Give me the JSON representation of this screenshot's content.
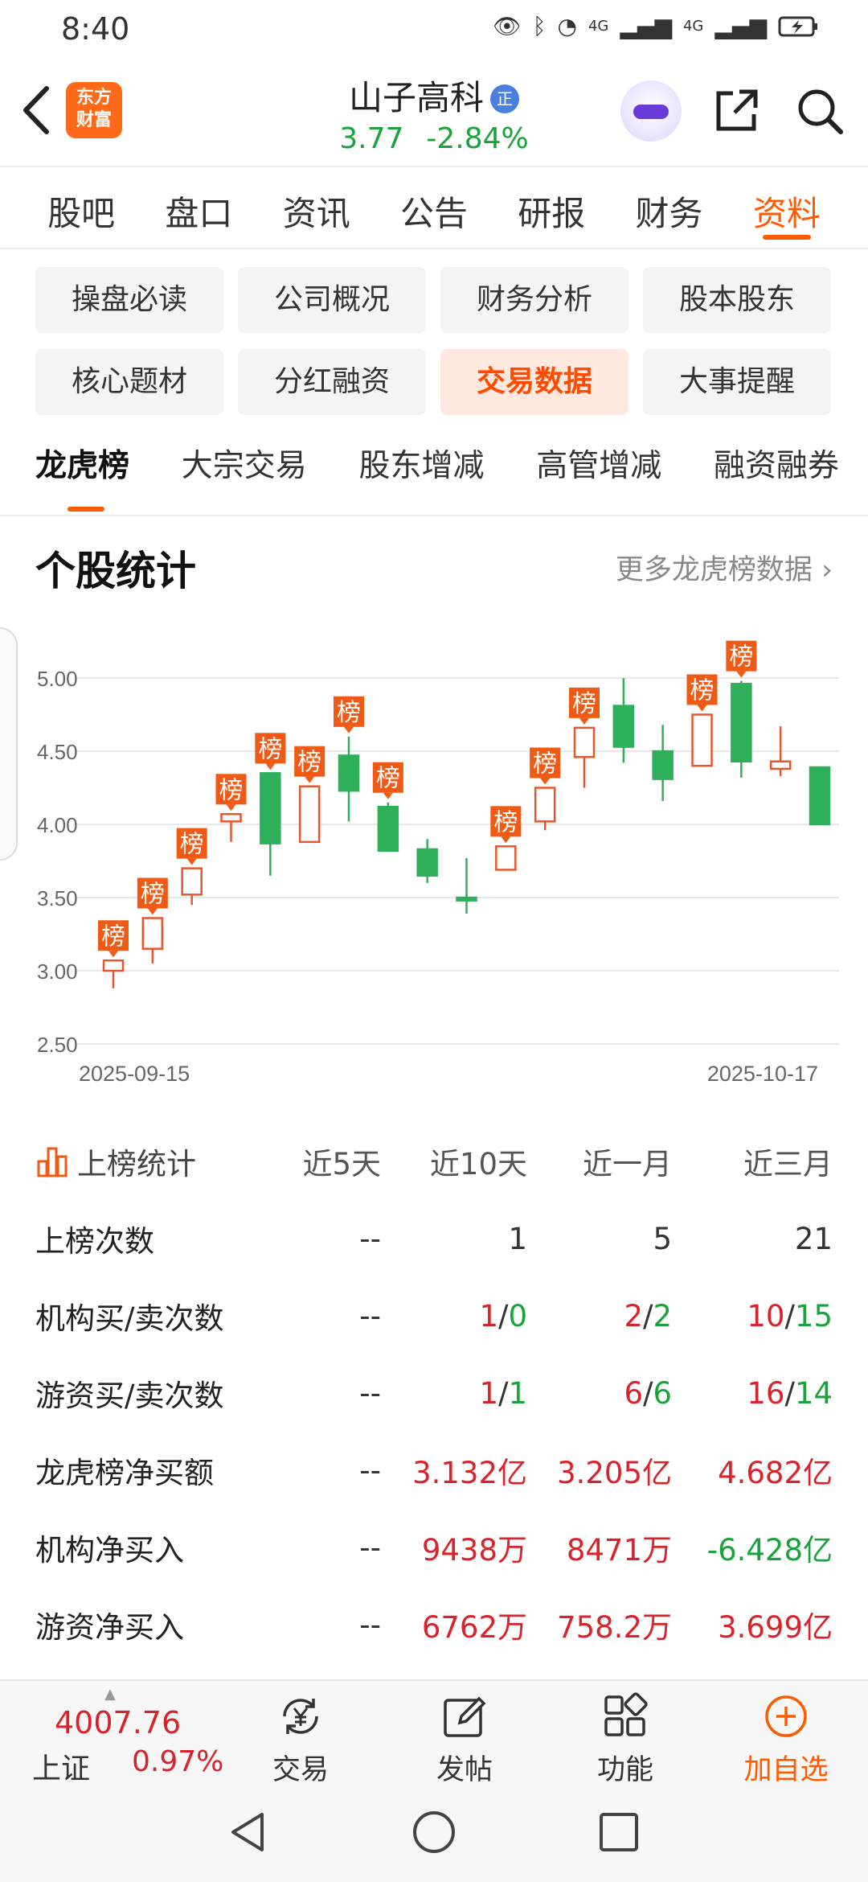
{
  "status_bar": {
    "time": "8:40",
    "signal1": "4G",
    "signal2": "4G"
  },
  "header": {
    "logo_line1": "东方",
    "logo_line2": "财富",
    "stock_name": "山子高科",
    "badge": "正",
    "price": "3.77",
    "change_pct": "-2.84%"
  },
  "main_tabs": [
    "股吧",
    "盘口",
    "资讯",
    "公告",
    "研报",
    "财务",
    "资料"
  ],
  "grid_buttons": [
    "操盘必读",
    "公司概况",
    "财务分析",
    "股本股东",
    "核心题材",
    "分红融资",
    "交易数据",
    "大事提醒"
  ],
  "sub_tabs": [
    "龙虎榜",
    "大宗交易",
    "股东增减",
    "高管增减",
    "融资融券"
  ],
  "section": {
    "title": "个股统计",
    "more": "更多龙虎榜数据 ›"
  },
  "chart_data": {
    "type": "candlestick",
    "ylim": [
      2.5,
      5.25
    ],
    "yticks": [
      "5.00",
      "4.50",
      "4.00",
      "3.50",
      "3.00",
      "2.50"
    ],
    "x_start_label": "2025-09-15",
    "x_end_label": "2025-10-17",
    "marker_label": "榜",
    "candles": [
      {
        "o": 3.0,
        "c": 3.07,
        "h": 3.07,
        "l": 2.88,
        "list": true
      },
      {
        "o": 3.15,
        "c": 3.36,
        "h": 3.36,
        "l": 3.05,
        "list": true
      },
      {
        "o": 3.52,
        "c": 3.7,
        "h": 3.7,
        "l": 3.45,
        "list": true
      },
      {
        "o": 4.02,
        "c": 4.07,
        "h": 4.07,
        "l": 3.88,
        "list": true
      },
      {
        "o": 4.35,
        "c": 3.87,
        "h": 4.35,
        "l": 3.65,
        "list": true
      },
      {
        "o": 3.88,
        "c": 4.26,
        "h": 4.26,
        "l": 3.88,
        "list": true
      },
      {
        "o": 4.47,
        "c": 4.23,
        "h": 4.6,
        "l": 4.02,
        "list": true
      },
      {
        "o": 4.12,
        "c": 3.82,
        "h": 4.15,
        "l": 3.82,
        "list": true
      },
      {
        "o": 3.83,
        "c": 3.65,
        "h": 3.9,
        "l": 3.6,
        "list": false
      },
      {
        "o": 3.5,
        "c": 3.48,
        "h": 3.77,
        "l": 3.39,
        "list": false
      },
      {
        "o": 3.69,
        "c": 3.85,
        "h": 3.85,
        "l": 3.69,
        "list": true
      },
      {
        "o": 4.02,
        "c": 4.25,
        "h": 4.25,
        "l": 3.96,
        "list": true
      },
      {
        "o": 4.46,
        "c": 4.66,
        "h": 4.66,
        "l": 4.25,
        "list": true
      },
      {
        "o": 4.81,
        "c": 4.53,
        "h": 5.0,
        "l": 4.42,
        "list": false
      },
      {
        "o": 4.5,
        "c": 4.31,
        "h": 4.68,
        "l": 4.16,
        "list": false
      },
      {
        "o": 4.4,
        "c": 4.75,
        "h": 4.75,
        "l": 4.4,
        "list": true
      },
      {
        "o": 4.96,
        "c": 4.43,
        "h": 4.98,
        "l": 4.32,
        "list": true
      },
      {
        "o": 4.38,
        "c": 4.43,
        "h": 4.67,
        "l": 4.33,
        "list": false
      },
      {
        "o": 4.39,
        "c": 4.0,
        "h": 4.39,
        "l": 4.0,
        "list": false
      }
    ],
    "colors": {
      "up": "#e4572e",
      "down": "#2eb05a",
      "marker": "#f05a14",
      "grid": "#e8e8e8",
      "axis_text": "#666"
    }
  },
  "stats": {
    "title": "上榜统计",
    "headers": [
      "近5天",
      "近10天",
      "近一月",
      "近三月"
    ],
    "rows": [
      {
        "label": "上榜次数",
        "cells": [
          {
            "type": "plain",
            "v": "--"
          },
          {
            "type": "plain",
            "v": "1"
          },
          {
            "type": "plain",
            "v": "5"
          },
          {
            "type": "plain",
            "v": "21"
          }
        ]
      },
      {
        "label": "机构买/卖次数",
        "cells": [
          {
            "type": "plain",
            "v": "--"
          },
          {
            "type": "pair",
            "a": "1",
            "b": "0"
          },
          {
            "type": "pair",
            "a": "2",
            "b": "2"
          },
          {
            "type": "pair",
            "a": "10",
            "b": "15"
          }
        ]
      },
      {
        "label": "游资买/卖次数",
        "cells": [
          {
            "type": "plain",
            "v": "--"
          },
          {
            "type": "pair",
            "a": "1",
            "b": "1"
          },
          {
            "type": "pair",
            "a": "6",
            "b": "6"
          },
          {
            "type": "pair",
            "a": "16",
            "b": "14"
          }
        ]
      },
      {
        "label": "龙虎榜净买额",
        "cells": [
          {
            "type": "plain",
            "v": "--"
          },
          {
            "type": "red",
            "v": "3.132亿"
          },
          {
            "type": "red",
            "v": "3.205亿"
          },
          {
            "type": "red",
            "v": "4.682亿"
          }
        ]
      },
      {
        "label": "机构净买入",
        "cells": [
          {
            "type": "plain",
            "v": "--"
          },
          {
            "type": "red",
            "v": "9438万"
          },
          {
            "type": "red",
            "v": "8471万"
          },
          {
            "type": "green",
            "v": "-6.428亿"
          }
        ]
      },
      {
        "label": "游资净买入",
        "cells": [
          {
            "type": "plain",
            "v": "--"
          },
          {
            "type": "red",
            "v": "6762万"
          },
          {
            "type": "red",
            "v": "758.2万"
          },
          {
            "type": "red",
            "v": "3.699亿"
          }
        ]
      }
    ]
  },
  "bottom_nav": {
    "index_value": "4007.76",
    "index_name": "上证",
    "index_pct": "0.97%",
    "items": [
      "交易",
      "发帖",
      "功能",
      "加自选"
    ]
  }
}
